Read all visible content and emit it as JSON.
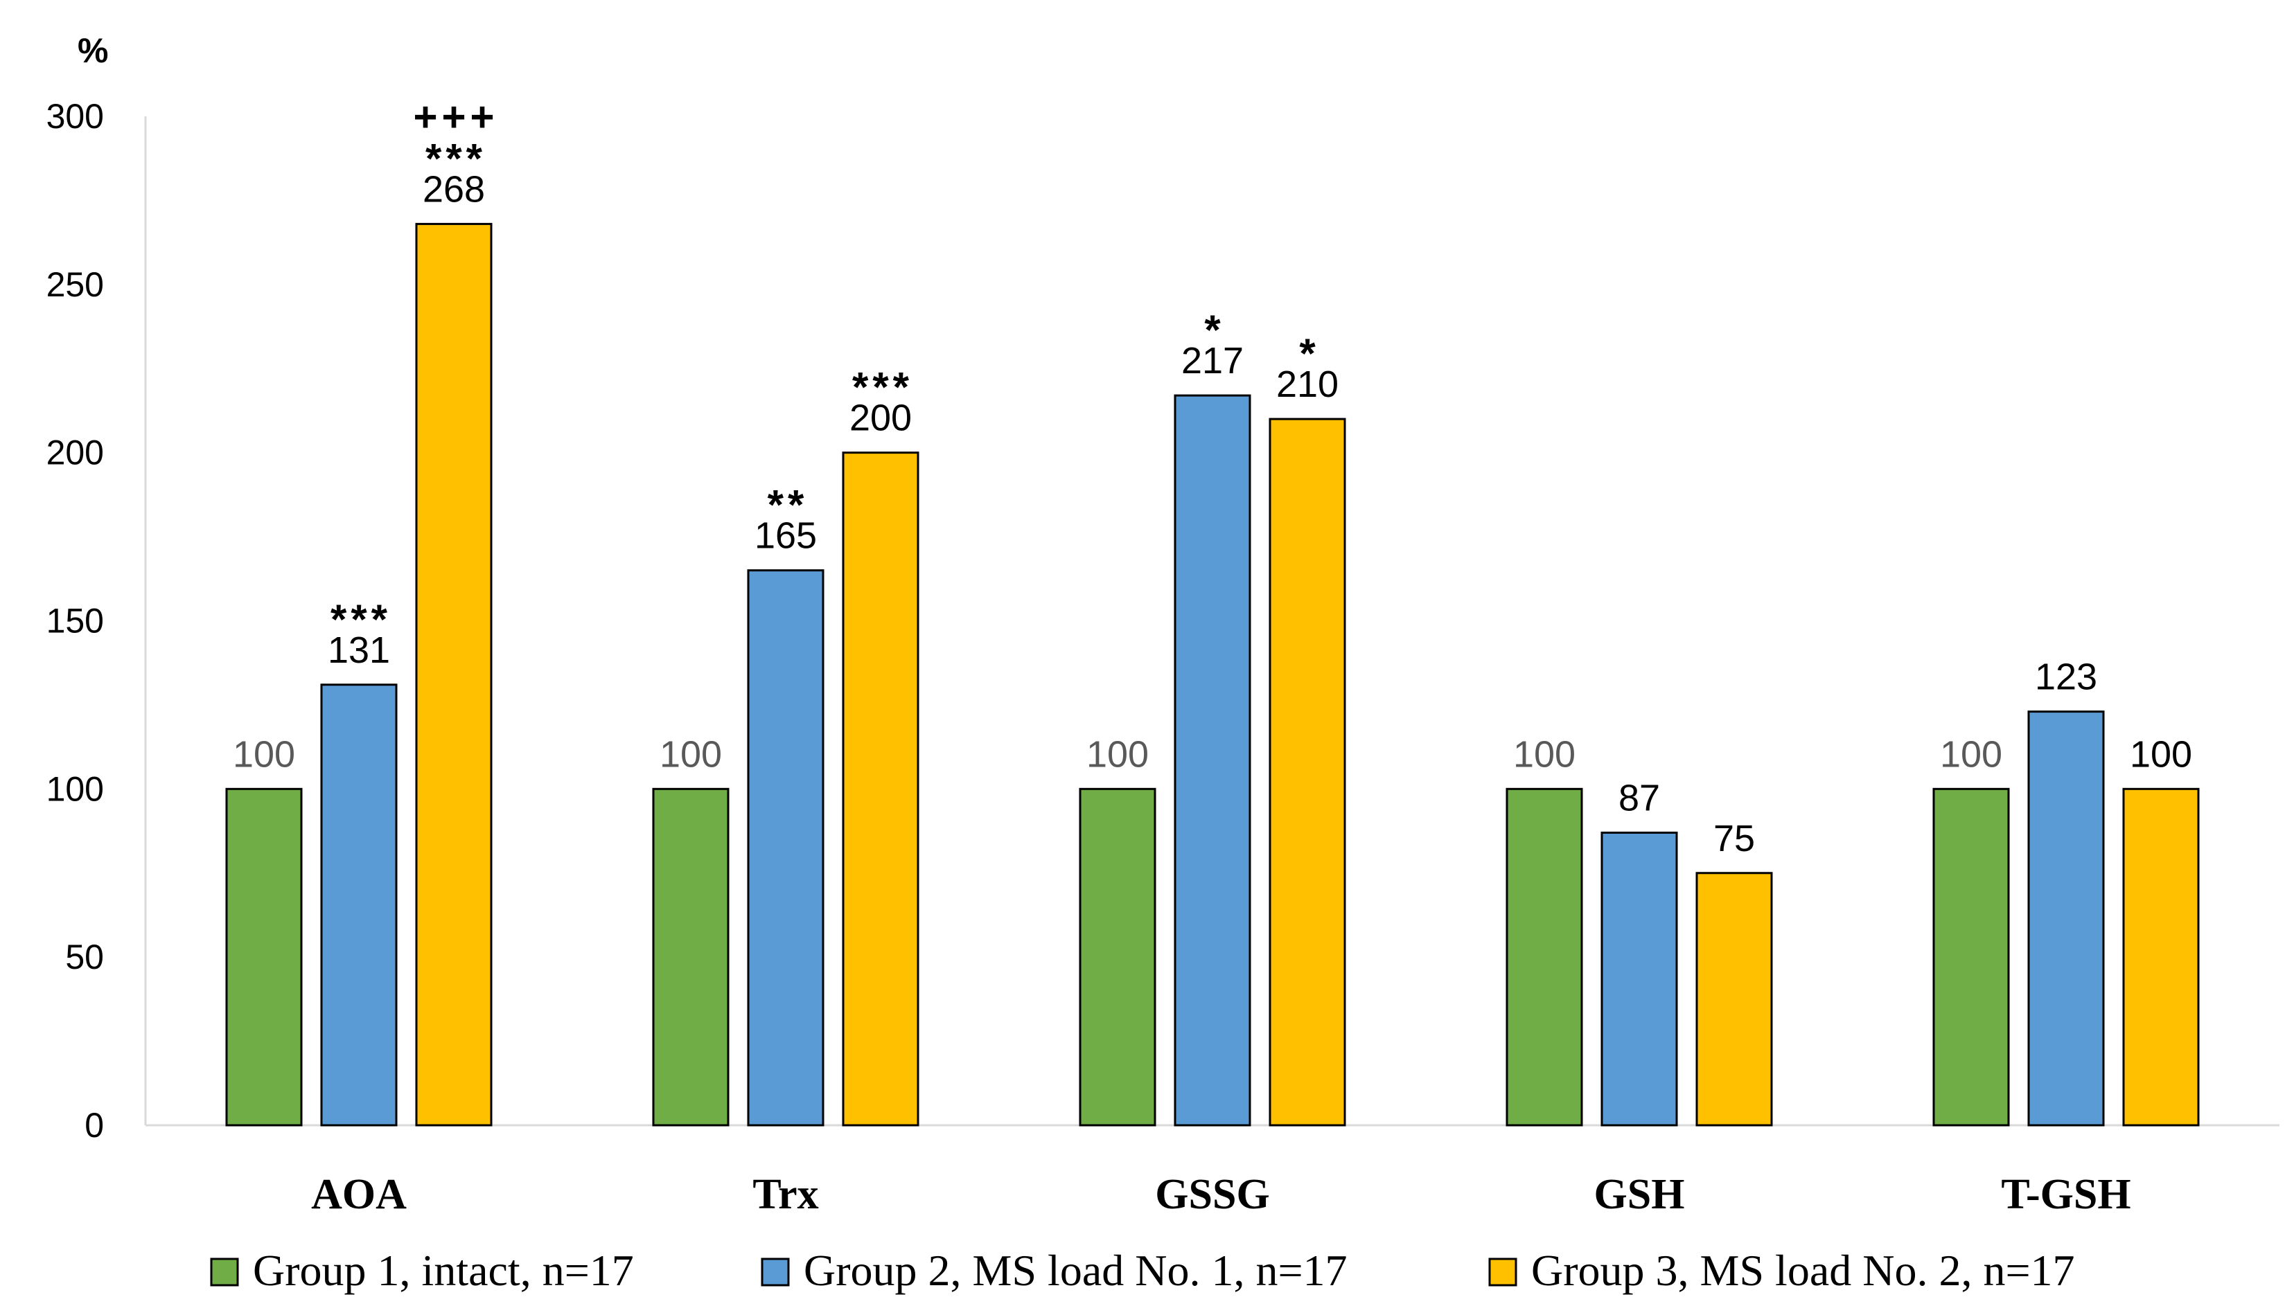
{
  "chart_data": {
    "type": "bar",
    "title": "",
    "xlabel": "",
    "ylabel": "",
    "y_unit_label": "%",
    "ylim": [
      0,
      300
    ],
    "yticks": [
      0,
      50,
      100,
      150,
      200,
      250,
      300
    ],
    "grid": false,
    "legend_position": "bottom",
    "categories": [
      "AOA",
      "Trx",
      "GSSG",
      "GSH",
      "T-GSH"
    ],
    "series": [
      {
        "name": "Group 1, intact, n=17",
        "color": "#70AD47",
        "values": [
          100,
          100,
          100,
          100,
          100
        ],
        "labels": [
          "100",
          "100",
          "100",
          "100",
          "100"
        ],
        "significance": [
          [],
          [],
          [],
          [],
          []
        ]
      },
      {
        "name": "Group 2, MS load No. 1, n=17",
        "color": "#5B9BD5",
        "values": [
          131,
          165,
          217,
          87,
          123
        ],
        "labels": [
          "131",
          "165",
          "217",
          "87",
          "123"
        ],
        "significance": [
          [
            "***"
          ],
          [
            "**"
          ],
          [
            "*"
          ],
          [],
          []
        ]
      },
      {
        "name": "Group 3, MS load No. 2, n=17",
        "color": "#FFC000",
        "values": [
          268,
          200,
          210,
          75,
          100
        ],
        "labels": [
          "268",
          "200",
          "210",
          "75",
          "100"
        ],
        "significance": [
          [
            "+++",
            "***"
          ],
          [
            "***"
          ],
          [
            "*"
          ],
          [],
          []
        ]
      }
    ]
  }
}
